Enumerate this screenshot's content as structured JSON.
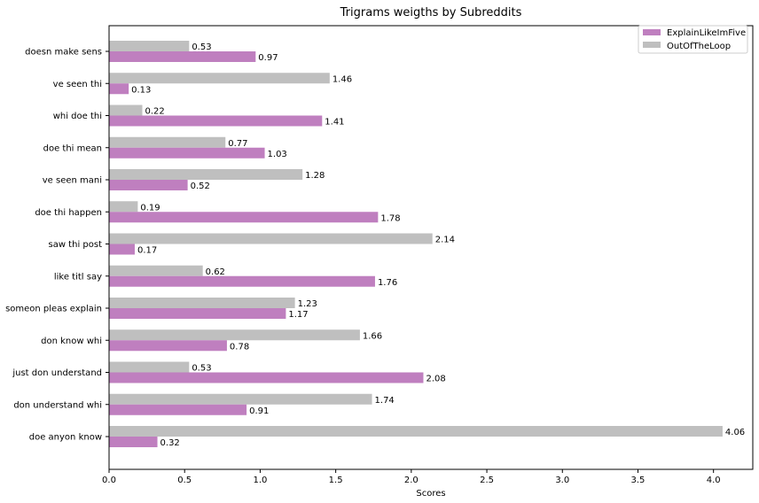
{
  "chart_data": {
    "type": "bar",
    "orientation": "horizontal",
    "title": "Trigrams weigths by Subreddits",
    "xlabel": "Scores",
    "ylabel": "",
    "xlim": [
      0,
      4.26
    ],
    "xticks": [
      "0.0",
      "0.5",
      "1.0",
      "1.5",
      "2.0",
      "2.5",
      "3.0",
      "3.5",
      "4.0"
    ],
    "categories": [
      "doesn make sens",
      "ve seen thi",
      "whi doe thi",
      "doe thi mean",
      "ve seen mani",
      "doe thi happen",
      "saw thi post",
      "like titl say",
      "someon pleas explain",
      "don know whi",
      "just don understand",
      "don understand whi",
      "doe anyon know"
    ],
    "series": [
      {
        "name": "ExplainLikeImFive",
        "color": "#bf7fbf",
        "values": [
          0.97,
          0.13,
          1.41,
          1.03,
          0.52,
          1.78,
          0.17,
          1.76,
          1.17,
          0.78,
          2.08,
          0.91,
          0.32
        ]
      },
      {
        "name": "OutOfTheLoop",
        "color": "#bfbfbf",
        "values": [
          0.53,
          1.46,
          0.22,
          0.77,
          1.28,
          0.19,
          2.14,
          0.62,
          1.23,
          1.66,
          0.53,
          1.74,
          4.06
        ]
      }
    ],
    "legend_position": "top-right",
    "grid": false
  }
}
